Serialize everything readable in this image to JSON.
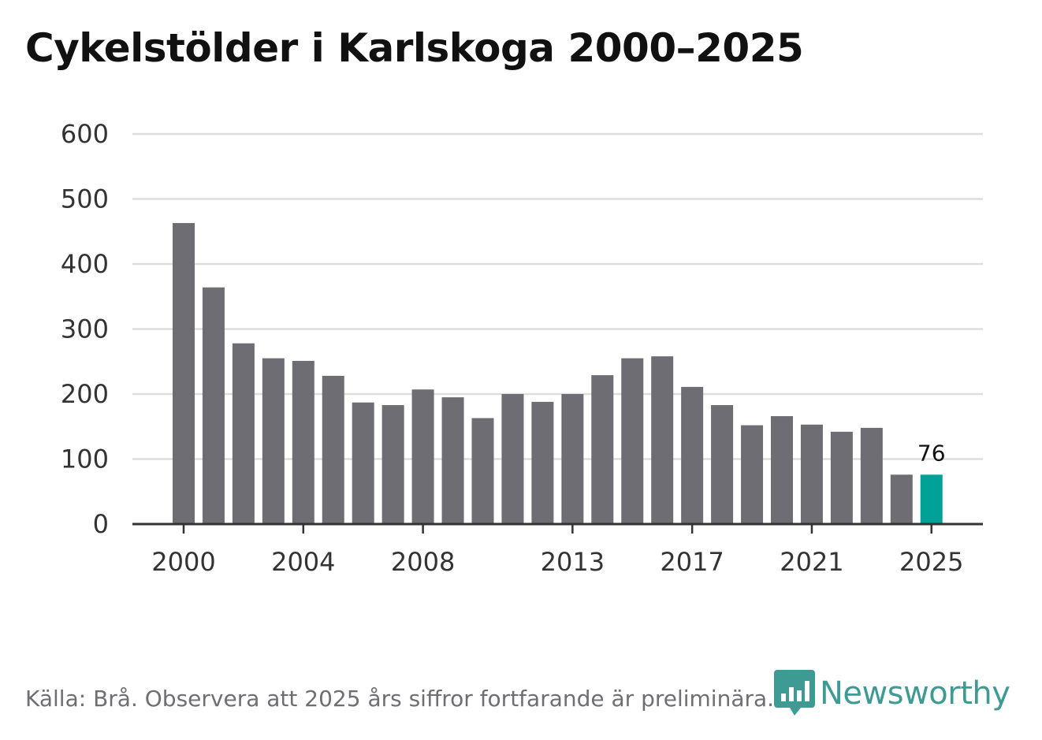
{
  "title": "Cykelstölder i Karlskoga 2000–2025",
  "source": "Källa: Brå. Observera att 2025 års siffror fortfarande är preliminära.",
  "brand": {
    "name": "Newsworthy",
    "icon": "newsworthy-bar-chart-icon",
    "color": "#3d9b94"
  },
  "colors": {
    "bar": "#6e6d73",
    "highlight": "#00a297",
    "grid": "#dddddd",
    "axis": "#333333"
  },
  "chart_data": {
    "type": "bar",
    "x": [
      2000,
      2001,
      2002,
      2003,
      2004,
      2005,
      2006,
      2007,
      2008,
      2009,
      2010,
      2011,
      2012,
      2013,
      2014,
      2015,
      2016,
      2017,
      2018,
      2019,
      2020,
      2021,
      2022,
      2023,
      2024,
      2025
    ],
    "values": [
      463,
      364,
      278,
      255,
      251,
      228,
      187,
      183,
      207,
      195,
      163,
      200,
      188,
      200,
      229,
      255,
      258,
      211,
      183,
      152,
      166,
      153,
      142,
      148,
      76,
      76
    ],
    "highlight_index": 25,
    "annotation": {
      "index": 25,
      "label": "76"
    },
    "xticks": [
      2000,
      2004,
      2008,
      2013,
      2017,
      2021,
      2025
    ],
    "yticks": [
      0,
      100,
      200,
      300,
      400,
      500,
      600
    ],
    "ylim": [
      0,
      600
    ],
    "grid": true,
    "legend": "none"
  }
}
